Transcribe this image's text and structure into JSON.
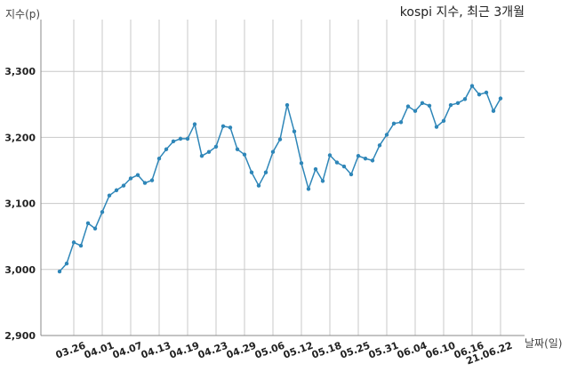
{
  "chart_data": {
    "type": "line",
    "title": "kospi 지수, 최근 3개월",
    "ylabel": "지수(p)",
    "xlabel": "날짜(일)",
    "ylim": [
      2900,
      3400
    ],
    "yticks": [
      2900,
      3000,
      3100,
      3200,
      3300
    ],
    "ytick_labels": [
      "2,900",
      "3,000",
      "3,100",
      "3,200",
      "3,300"
    ],
    "grid": true,
    "line_color": "#2e86b8",
    "x_ticks": [
      {
        "label": "03.26",
        "index": 2
      },
      {
        "label": "04.01",
        "index": 6
      },
      {
        "label": "04.07",
        "index": 10
      },
      {
        "label": "04.13",
        "index": 14
      },
      {
        "label": "04.19",
        "index": 18
      },
      {
        "label": "04.23",
        "index": 22
      },
      {
        "label": "04.29",
        "index": 26
      },
      {
        "label": "05.06",
        "index": 30
      },
      {
        "label": "05.12",
        "index": 34
      },
      {
        "label": "05.18",
        "index": 38
      },
      {
        "label": "05.25",
        "index": 42
      },
      {
        "label": "05.31",
        "index": 46
      },
      {
        "label": "06.04",
        "index": 50
      },
      {
        "label": "06.10",
        "index": 54
      },
      {
        "label": "06.16",
        "index": 58
      },
      {
        "label": "21.06.22",
        "index": 62
      }
    ],
    "values": [
      2997,
      3009,
      3041,
      3036,
      3070,
      3062,
      3087,
      3112,
      3120,
      3127,
      3138,
      3143,
      3131,
      3135,
      3168,
      3182,
      3194,
      3198,
      3198,
      3220,
      3172,
      3178,
      3186,
      3217,
      3215,
      3182,
      3174,
      3147,
      3127,
      3147,
      3178,
      3197,
      3249,
      3209,
      3161,
      3122,
      3152,
      3134,
      3173,
      3162,
      3156,
      3144,
      3172,
      3168,
      3165,
      3188,
      3204,
      3221,
      3223,
      3247,
      3240,
      3252,
      3248,
      3216,
      3225,
      3249,
      3252,
      3258,
      3278,
      3265,
      3268,
      3240,
      3259
    ]
  }
}
